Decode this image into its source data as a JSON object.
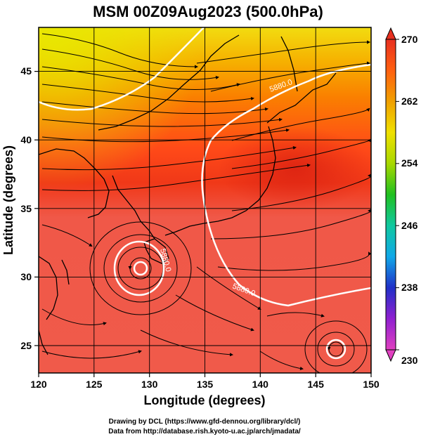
{
  "figure": {
    "title": "MSM 00Z09Aug2023 (500.0hPa)",
    "xlabel": "Longitude (degrees)",
    "ylabel": "Latitude  (degrees)",
    "credit_line1": "Drawing by DCL (https://www.gfd-dennou.org/library/dcl/)",
    "credit_line2": "Data from http://database.rish.kyoto-u.ac.jp/arch/jmadata/"
  },
  "map": {
    "lon_range": [
      120,
      150
    ],
    "lat_range": [
      22.4,
      47.6
    ],
    "lon_ticks": [
      "120",
      "125",
      "130",
      "135",
      "140",
      "145",
      "150"
    ],
    "lat_ticks": [
      "25",
      "30",
      "35",
      "40",
      "45"
    ],
    "grid": true,
    "contour_label": "5880.0"
  },
  "colorbar": {
    "range": [
      230,
      270
    ],
    "ticks": [
      "230",
      "238",
      "246",
      "254",
      "262",
      "270"
    ],
    "colors": [
      "#e040c0",
      "#9020d0",
      "#2030c8",
      "#10a8e8",
      "#10c8a0",
      "#20c020",
      "#a8d800",
      "#f0e000",
      "#f0a000",
      "#ff6010",
      "#e83020"
    ]
  }
}
